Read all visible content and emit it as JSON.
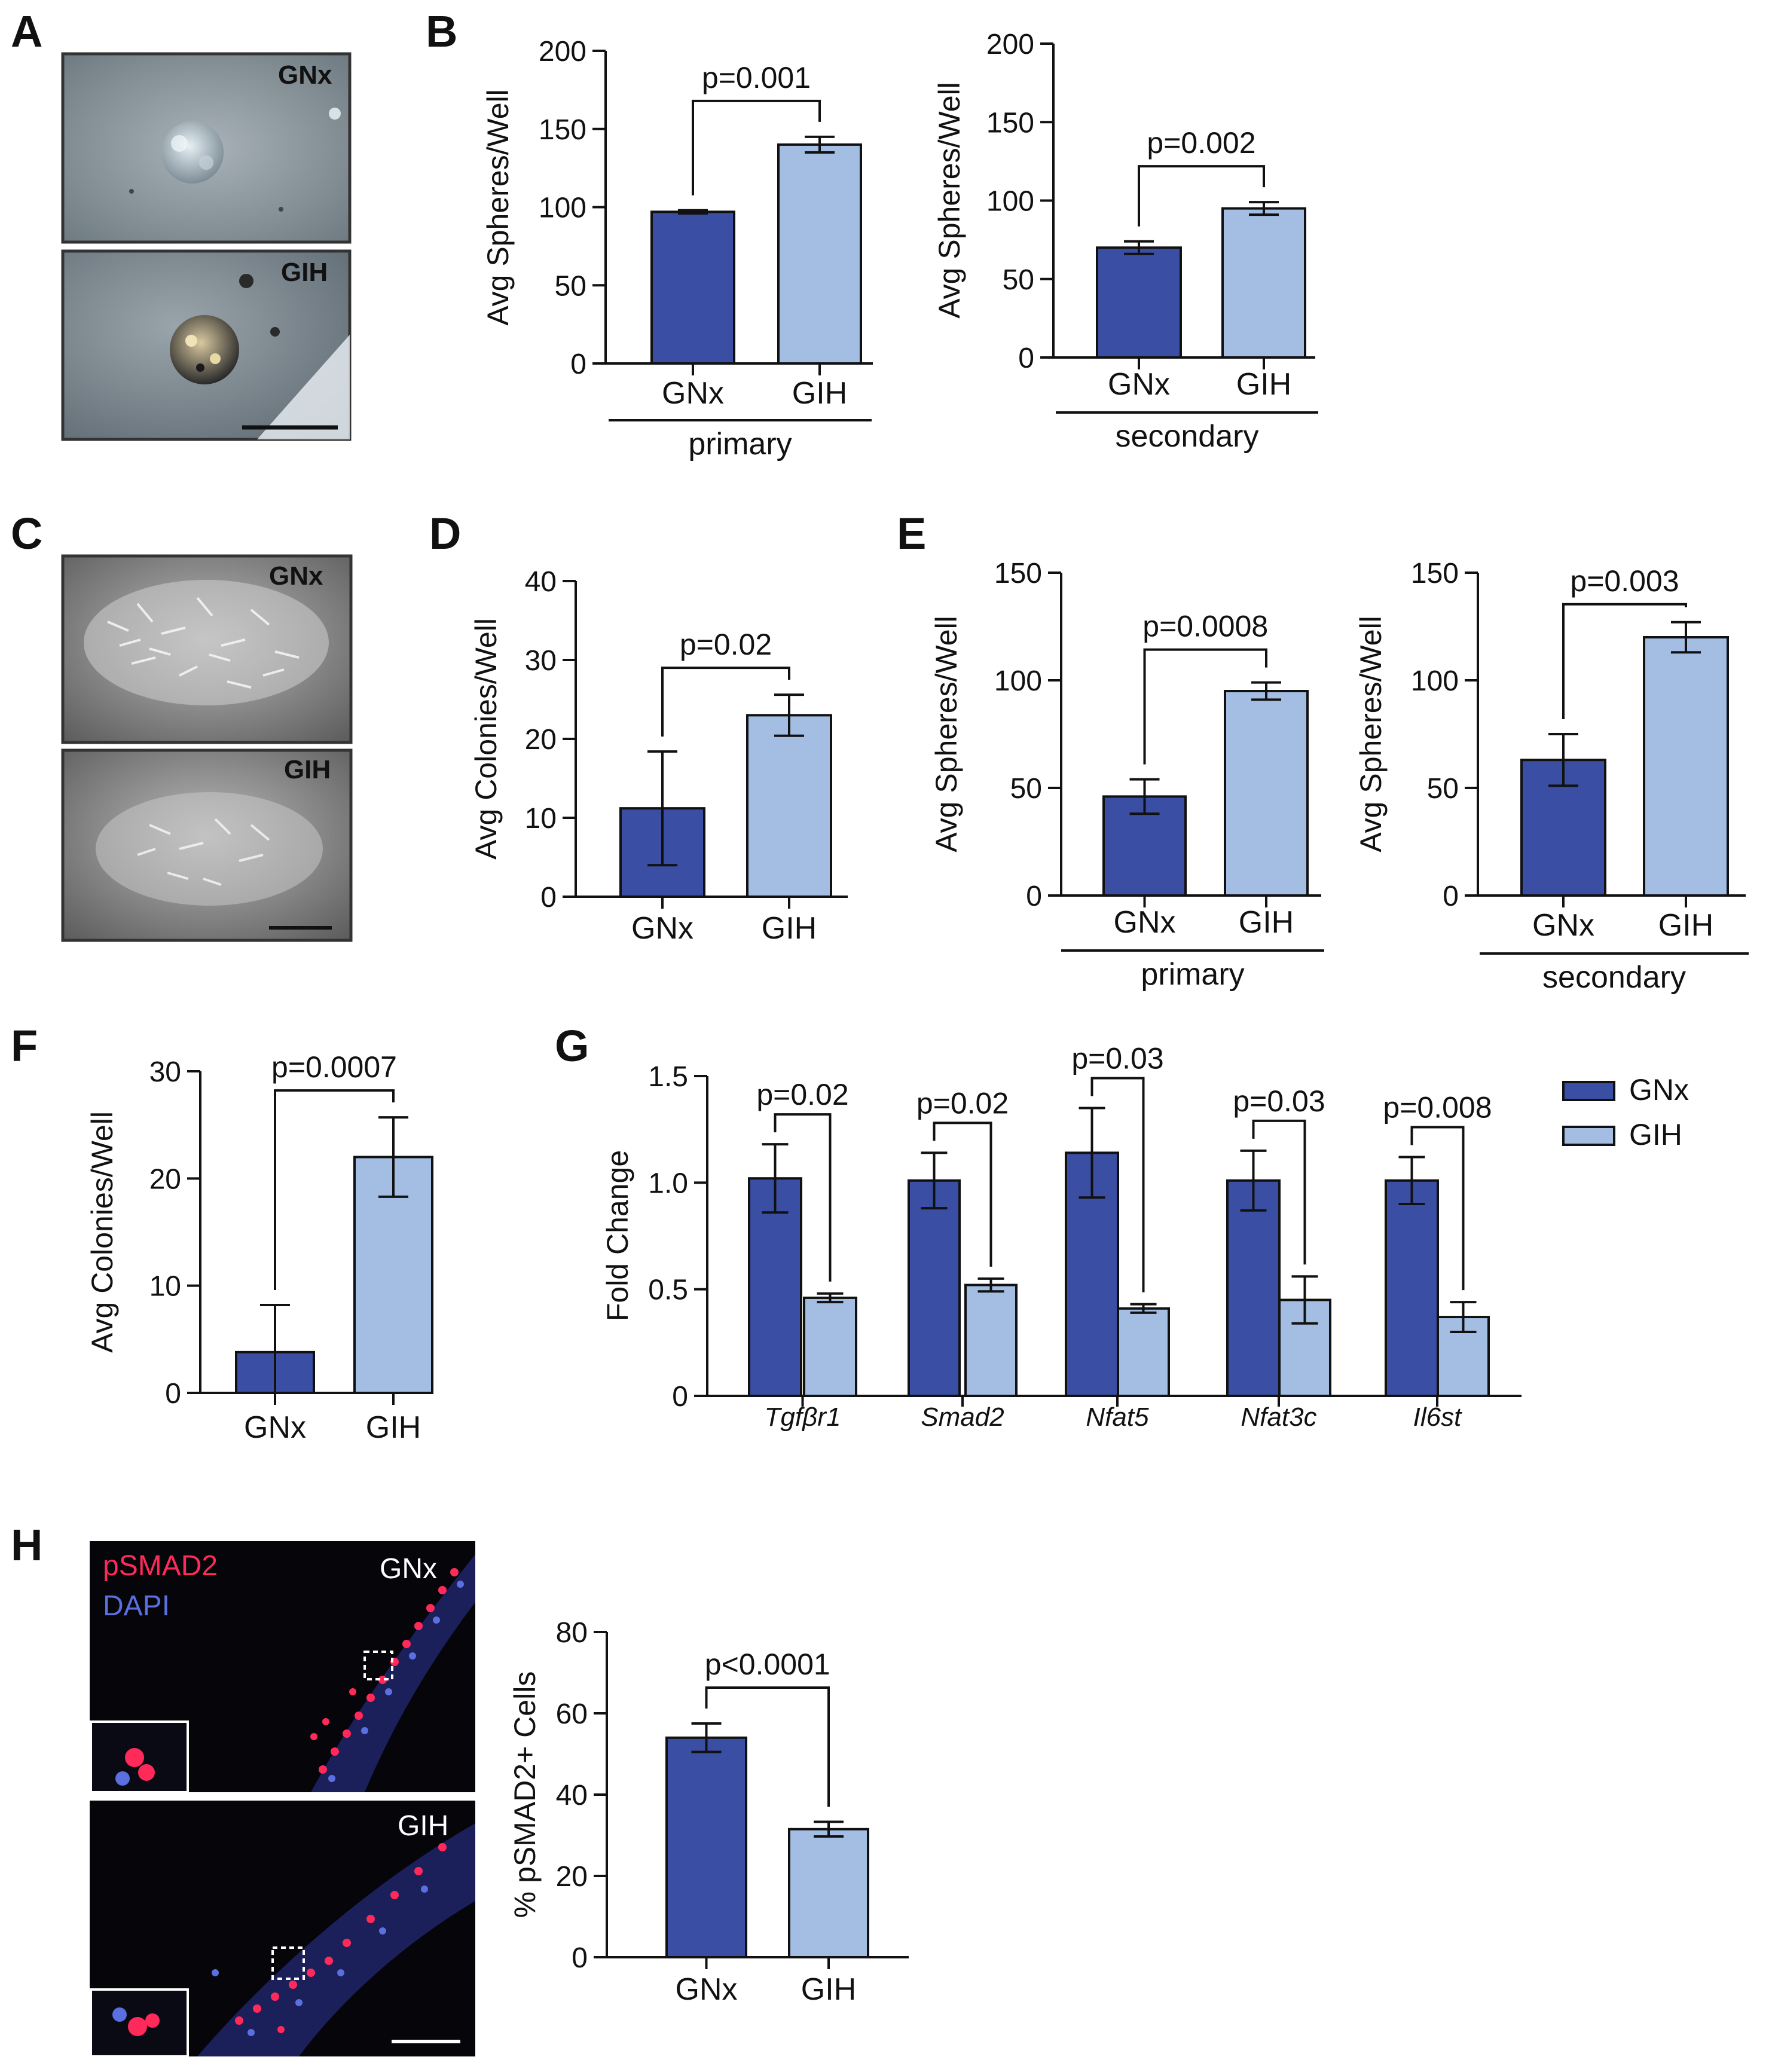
{
  "colors": {
    "gnx": "#3a4ea3",
    "gih": "#a3bde3",
    "axis": "#111111",
    "red_stain": "#ff2a5a",
    "blue_stain": "#5a6fe0"
  },
  "panels": [
    {
      "letter": "A"
    },
    {
      "letter": "B"
    },
    {
      "letter": "C"
    },
    {
      "letter": "D"
    },
    {
      "letter": "E"
    },
    {
      "letter": "F"
    },
    {
      "letter": "G"
    },
    {
      "letter": "H"
    }
  ],
  "images": {
    "A_top": "GNx",
    "A_bottom": "GIH",
    "C_top": "GNx",
    "C_bottom": "GIH",
    "H_top": "GNx",
    "H_bottom": "GIH",
    "H_stain1": "pSMAD2",
    "H_stain2": "DAPI"
  },
  "chart_data": [
    {
      "id": "B1",
      "panel": "B",
      "type": "bar",
      "categories": [
        "GNx",
        "GIH"
      ],
      "values": [
        97,
        140
      ],
      "errors": [
        1,
        5
      ],
      "ylabel": "Avg Spheres/Well",
      "ylim": [
        0,
        200
      ],
      "yticks": [
        0,
        50,
        100,
        150,
        200
      ],
      "group_label": "primary",
      "pvalue": "p=0.001"
    },
    {
      "id": "B2",
      "panel": "B",
      "type": "bar",
      "categories": [
        "GNx",
        "GIH"
      ],
      "values": [
        70,
        95
      ],
      "errors": [
        4,
        4
      ],
      "ylabel": "Avg Spheres/Well",
      "ylim": [
        0,
        200
      ],
      "yticks": [
        0,
        50,
        100,
        150,
        200
      ],
      "group_label": "secondary",
      "pvalue": "p=0.002"
    },
    {
      "id": "D",
      "panel": "D",
      "type": "bar",
      "categories": [
        "GNx",
        "GIH"
      ],
      "values": [
        11.2,
        23
      ],
      "errors": [
        7.2,
        2.6
      ],
      "ylabel": "Avg Colonies/Well",
      "ylim": [
        0,
        40
      ],
      "yticks": [
        0,
        10,
        20,
        30,
        40
      ],
      "group_label": "",
      "pvalue": "p=0.02"
    },
    {
      "id": "E1",
      "panel": "E",
      "type": "bar",
      "categories": [
        "GNx",
        "GIH"
      ],
      "values": [
        46,
        95
      ],
      "errors": [
        8,
        4
      ],
      "ylabel": "Avg Spheres/Well",
      "ylim": [
        0,
        150
      ],
      "yticks": [
        0,
        50,
        100,
        150
      ],
      "group_label": "primary",
      "pvalue": "p=0.0008"
    },
    {
      "id": "E2",
      "panel": "E",
      "type": "bar",
      "categories": [
        "GNx",
        "GIH"
      ],
      "values": [
        63,
        120
      ],
      "errors": [
        12,
        7
      ],
      "ylabel": "Avg Spheres/Well",
      "ylim": [
        0,
        150
      ],
      "yticks": [
        0,
        50,
        100,
        150
      ],
      "group_label": "secondary",
      "pvalue": "p=0.003"
    },
    {
      "id": "F",
      "panel": "F",
      "type": "bar",
      "categories": [
        "GNx",
        "GIH"
      ],
      "values": [
        3.8,
        22
      ],
      "errors": [
        4.4,
        3.7
      ],
      "ylabel": "Avg Colonies/Well",
      "ylim": [
        0,
        30
      ],
      "yticks": [
        0,
        10,
        20,
        30
      ],
      "group_label": "",
      "pvalue": "p=0.0007"
    },
    {
      "id": "G",
      "panel": "G",
      "type": "bar",
      "categories": [
        "Tgfβr1",
        "Smad2",
        "Nfat5",
        "Nfat3c",
        "Il6st"
      ],
      "series": [
        {
          "name": "GNx",
          "values": [
            1.02,
            1.01,
            1.14,
            1.01,
            1.01
          ],
          "errors": [
            0.16,
            0.13,
            0.21,
            0.14,
            0.11
          ]
        },
        {
          "name": "GIH",
          "values": [
            0.46,
            0.52,
            0.41,
            0.45,
            0.37
          ],
          "errors": [
            0.02,
            0.03,
            0.02,
            0.11,
            0.07
          ]
        }
      ],
      "pvalues": [
        "p=0.02",
        "p=0.02",
        "p=0.03",
        "p=0.03",
        "p=0.008"
      ],
      "ylabel": "Fold Change",
      "ylim": [
        0,
        1.5
      ],
      "yticks": [
        "0",
        "0.5",
        "1.0",
        "1.5"
      ],
      "legend": "top-right"
    },
    {
      "id": "H",
      "panel": "H",
      "type": "bar",
      "categories": [
        "GNx",
        "GIH"
      ],
      "values": [
        54,
        31.5
      ],
      "errors": [
        3.5,
        1.8
      ],
      "ylabel": "% pSMAD2+ Cells",
      "ylim": [
        0,
        80
      ],
      "yticks": [
        0,
        20,
        40,
        60,
        80
      ],
      "group_label": "",
      "pvalue": "p<0.0001"
    }
  ]
}
